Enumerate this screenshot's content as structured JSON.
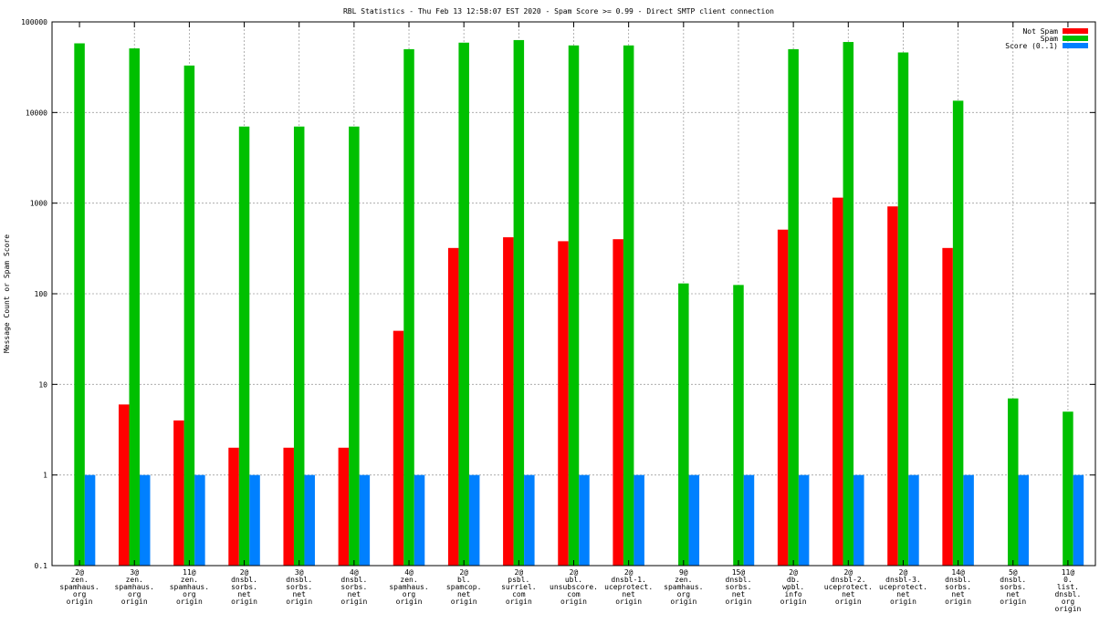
{
  "chart_data": {
    "type": "bar",
    "title": "RBL Statistics - Thu Feb 13 12:58:07 EST 2020 - Spam Score >= 0.99 - Direct SMTP client connection",
    "xlabel": "",
    "ylabel": "Message Count or Spam Score",
    "yscale": "log",
    "ylim": [
      0.1,
      100000
    ],
    "yticks": [
      "0.1",
      "1",
      "10",
      "100",
      "1000",
      "10000",
      "100000"
    ],
    "grid": true,
    "legend_position": "top-right",
    "categories": [
      [
        "2@",
        "zen.",
        "spamhaus.",
        "org",
        "origin"
      ],
      [
        "3@",
        "zen.",
        "spamhaus.",
        "org",
        "origin"
      ],
      [
        "11@",
        "zen.",
        "spamhaus.",
        "org",
        "origin"
      ],
      [
        "2@",
        "dnsbl.",
        "sorbs.",
        "net",
        "origin"
      ],
      [
        "3@",
        "dnsbl.",
        "sorbs.",
        "net",
        "origin"
      ],
      [
        "4@",
        "dnsbl.",
        "sorbs.",
        "net",
        "origin"
      ],
      [
        "4@",
        "zen.",
        "spamhaus.",
        "org",
        "origin"
      ],
      [
        "2@",
        "bl.",
        "spamcop.",
        "net",
        "origin"
      ],
      [
        "2@",
        "psbl.",
        "surriel.",
        "com",
        "origin"
      ],
      [
        "2@",
        "ubl.",
        "unsubscore.",
        "com",
        "origin"
      ],
      [
        "2@",
        "dnsbl-1.",
        "uceprotect.",
        "net",
        "origin"
      ],
      [
        "9@",
        "zen.",
        "spamhaus.",
        "org",
        "origin"
      ],
      [
        "15@",
        "dnsbl.",
        "sorbs.",
        "net",
        "origin"
      ],
      [
        "2@",
        "db.",
        "wpbl.",
        "info",
        "origin"
      ],
      [
        "2@",
        "dnsbl-2.",
        "uceprotect.",
        "net",
        "origin"
      ],
      [
        "2@",
        "dnsbl-3.",
        "uceprotect.",
        "net",
        "origin"
      ],
      [
        "14@",
        "dnsbl.",
        "sorbs.",
        "net",
        "origin"
      ],
      [
        "5@",
        "dnsbl.",
        "sorbs.",
        "net",
        "origin"
      ],
      [
        "11@",
        "0.",
        "list.",
        "dnsbl.",
        "org",
        "origin"
      ]
    ],
    "series": [
      {
        "name": "Not Spam",
        "color": "#ff0000",
        "values": [
          0,
          6,
          4,
          2,
          2,
          2,
          39,
          320,
          420,
          380,
          400,
          0,
          0,
          510,
          1150,
          920,
          320,
          0,
          0
        ]
      },
      {
        "name": "Spam",
        "color": "#00c000",
        "values": [
          58000,
          51000,
          33000,
          7000,
          7000,
          7000,
          50000,
          59000,
          63000,
          55000,
          55000,
          130,
          125,
          50000,
          60000,
          46000,
          13500,
          7,
          5
        ]
      },
      {
        "name": "Score (0..1)",
        "color": "#0080ff",
        "values": [
          1,
          1,
          1,
          1,
          1,
          1,
          1,
          1,
          1,
          1,
          1,
          1,
          1,
          1,
          1,
          1,
          1,
          1,
          1
        ]
      }
    ]
  }
}
